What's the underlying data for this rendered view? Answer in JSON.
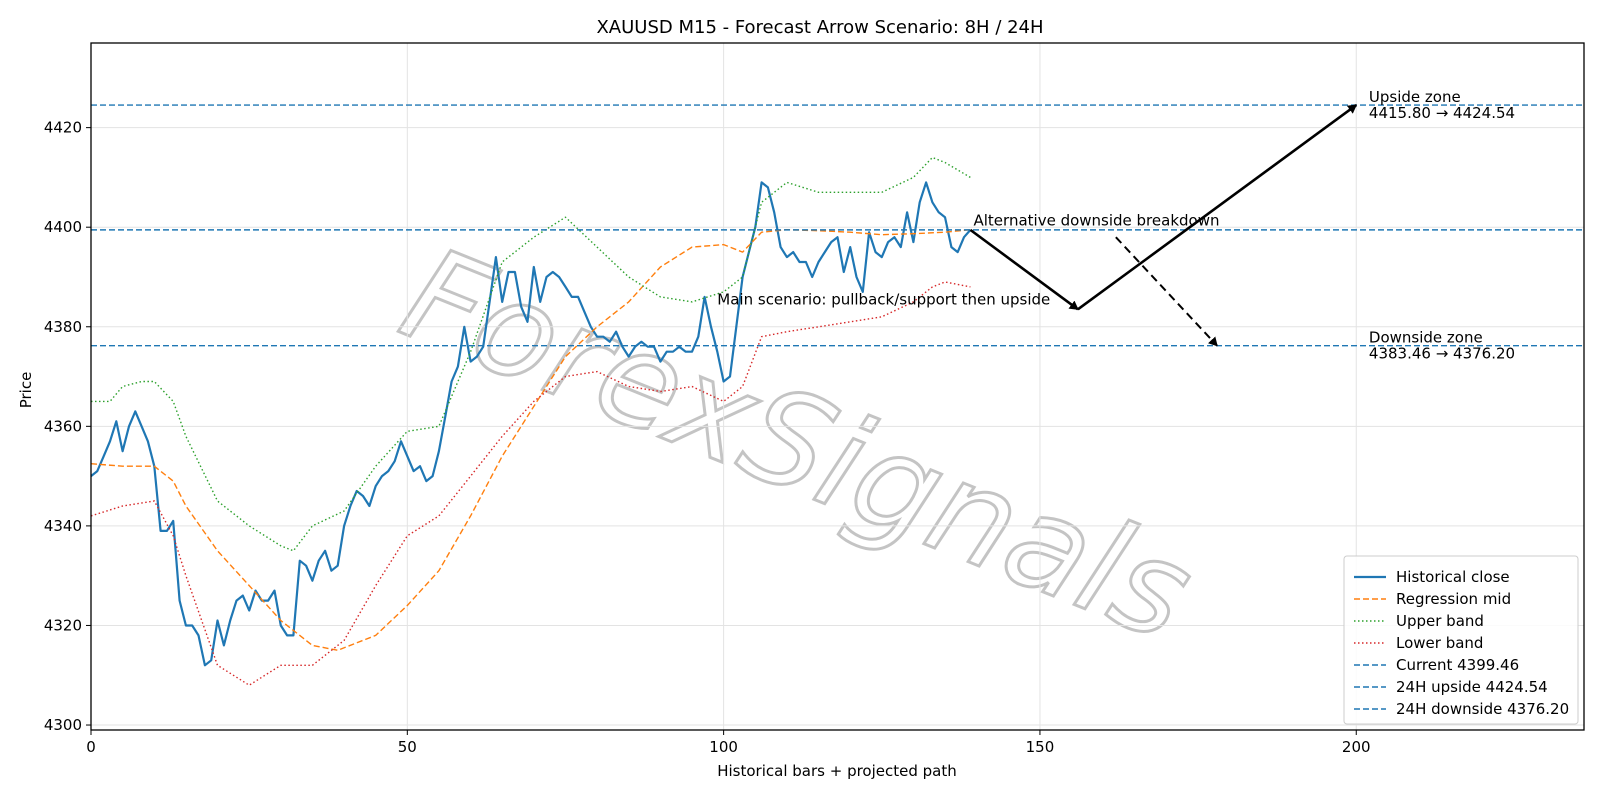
{
  "chart_data": {
    "type": "line",
    "title": "XAUUSD M15 - Forecast Arrow Scenario: 8H / 24H",
    "xlabel": "Historical bars + projected path",
    "ylabel": "Price",
    "xlim": [
      0,
      236
    ],
    "ylim": [
      4299,
      4437
    ],
    "x_ticks": [
      0,
      50,
      100,
      150,
      200
    ],
    "y_ticks": [
      4300,
      4320,
      4340,
      4360,
      4380,
      4400,
      4420
    ],
    "grid": true,
    "legend_position": "lower-right",
    "watermark": "ForexSignals",
    "series": [
      {
        "name": "Historical close",
        "key": "close",
        "color": "#1f77b4",
        "style": "solid",
        "points": [
          [
            0,
            4350
          ],
          [
            1,
            4351
          ],
          [
            2,
            4354
          ],
          [
            3,
            4357
          ],
          [
            4,
            4361
          ],
          [
            5,
            4355
          ],
          [
            6,
            4360
          ],
          [
            7,
            4363
          ],
          [
            8,
            4360
          ],
          [
            9,
            4357
          ],
          [
            10,
            4352
          ],
          [
            11,
            4339
          ],
          [
            12,
            4339
          ],
          [
            13,
            4341
          ],
          [
            14,
            4325
          ],
          [
            15,
            4320
          ],
          [
            16,
            4320
          ],
          [
            17,
            4318
          ],
          [
            18,
            4312
          ],
          [
            19,
            4313
          ],
          [
            20,
            4321
          ],
          [
            21,
            4316
          ],
          [
            22,
            4321
          ],
          [
            23,
            4325
          ],
          [
            24,
            4326
          ],
          [
            25,
            4323
          ],
          [
            26,
            4327
          ],
          [
            27,
            4325
          ],
          [
            28,
            4325
          ],
          [
            29,
            4327
          ],
          [
            30,
            4320
          ],
          [
            31,
            4318
          ],
          [
            32,
            4318
          ],
          [
            33,
            4333
          ],
          [
            34,
            4332
          ],
          [
            35,
            4329
          ],
          [
            36,
            4333
          ],
          [
            37,
            4335
          ],
          [
            38,
            4331
          ],
          [
            39,
            4332
          ],
          [
            40,
            4340
          ],
          [
            41,
            4344
          ],
          [
            42,
            4347
          ],
          [
            43,
            4346
          ],
          [
            44,
            4344
          ],
          [
            45,
            4348
          ],
          [
            46,
            4350
          ],
          [
            47,
            4351
          ],
          [
            48,
            4353
          ],
          [
            49,
            4357
          ],
          [
            50,
            4354
          ],
          [
            51,
            4351
          ],
          [
            52,
            4352
          ],
          [
            53,
            4349
          ],
          [
            54,
            4350
          ],
          [
            55,
            4355
          ],
          [
            56,
            4362
          ],
          [
            57,
            4369
          ],
          [
            58,
            4372
          ],
          [
            59,
            4380
          ],
          [
            60,
            4373
          ],
          [
            61,
            4374
          ],
          [
            62,
            4376
          ],
          [
            63,
            4385
          ],
          [
            64,
            4394
          ],
          [
            65,
            4385
          ],
          [
            66,
            4391
          ],
          [
            67,
            4391
          ],
          [
            68,
            4384
          ],
          [
            69,
            4381
          ],
          [
            70,
            4392
          ],
          [
            71,
            4385
          ],
          [
            72,
            4390
          ],
          [
            73,
            4391
          ],
          [
            74,
            4390
          ],
          [
            75,
            4388
          ],
          [
            76,
            4386
          ],
          [
            77,
            4386
          ],
          [
            78,
            4383
          ],
          [
            79,
            4380
          ],
          [
            80,
            4378
          ],
          [
            81,
            4378
          ],
          [
            82,
            4377
          ],
          [
            83,
            4379
          ],
          [
            84,
            4376
          ],
          [
            85,
            4374
          ],
          [
            86,
            4376
          ],
          [
            87,
            4377
          ],
          [
            88,
            4376
          ],
          [
            89,
            4376
          ],
          [
            90,
            4373
          ],
          [
            91,
            4375
          ],
          [
            92,
            4375
          ],
          [
            93,
            4376
          ],
          [
            94,
            4375
          ],
          [
            95,
            4375
          ],
          [
            96,
            4378
          ],
          [
            97,
            4386
          ],
          [
            98,
            4380
          ],
          [
            99,
            4375
          ],
          [
            100,
            4369
          ],
          [
            101,
            4370
          ],
          [
            102,
            4380
          ],
          [
            103,
            4390
          ],
          [
            104,
            4395
          ],
          [
            105,
            4400
          ],
          [
            106,
            4409
          ],
          [
            107,
            4408
          ],
          [
            108,
            4403
          ],
          [
            109,
            4396
          ],
          [
            110,
            4394
          ],
          [
            111,
            4395
          ],
          [
            112,
            4393
          ],
          [
            113,
            4393
          ],
          [
            114,
            4390
          ],
          [
            115,
            4393
          ],
          [
            116,
            4395
          ],
          [
            117,
            4397
          ],
          [
            118,
            4398
          ],
          [
            119,
            4391
          ],
          [
            120,
            4396
          ],
          [
            121,
            4390
          ],
          [
            122,
            4387
          ],
          [
            123,
            4399
          ],
          [
            124,
            4395
          ],
          [
            125,
            4394
          ],
          [
            126,
            4397
          ],
          [
            127,
            4398
          ],
          [
            128,
            4396
          ],
          [
            129,
            4403
          ],
          [
            130,
            4397
          ],
          [
            131,
            4405
          ],
          [
            132,
            4409
          ],
          [
            133,
            4405
          ],
          [
            134,
            4403
          ],
          [
            135,
            4402
          ],
          [
            136,
            4396
          ],
          [
            137,
            4395
          ],
          [
            138,
            4398
          ],
          [
            139,
            4399.46
          ]
        ]
      },
      {
        "name": "Regression mid",
        "key": "mid",
        "color": "#ff7f0e",
        "style": "dashed",
        "points": [
          [
            0,
            4352.5
          ],
          [
            5,
            4352
          ],
          [
            10,
            4352
          ],
          [
            13,
            4349
          ],
          [
            15,
            4344
          ],
          [
            20,
            4335
          ],
          [
            25,
            4328
          ],
          [
            30,
            4321
          ],
          [
            35,
            4316
          ],
          [
            39,
            4315
          ],
          [
            45,
            4318
          ],
          [
            50,
            4324
          ],
          [
            55,
            4331
          ],
          [
            60,
            4342
          ],
          [
            65,
            4354
          ],
          [
            70,
            4364
          ],
          [
            75,
            4374
          ],
          [
            80,
            4380
          ],
          [
            85,
            4385
          ],
          [
            90,
            4392
          ],
          [
            95,
            4396
          ],
          [
            100,
            4396.5
          ],
          [
            103,
            4395
          ],
          [
            106,
            4399
          ],
          [
            110,
            4399.5
          ],
          [
            115,
            4399.3
          ],
          [
            120,
            4399
          ],
          [
            125,
            4398.5
          ],
          [
            130,
            4398.7
          ],
          [
            135,
            4399
          ],
          [
            139,
            4399.5
          ]
        ]
      },
      {
        "name": "Upper band",
        "key": "upper",
        "color": "#2ca02c",
        "style": "dotted",
        "points": [
          [
            0,
            4365
          ],
          [
            3,
            4365
          ],
          [
            5,
            4368
          ],
          [
            8,
            4369
          ],
          [
            10,
            4369
          ],
          [
            13,
            4365
          ],
          [
            15,
            4358
          ],
          [
            20,
            4345
          ],
          [
            25,
            4340
          ],
          [
            30,
            4336
          ],
          [
            32,
            4335
          ],
          [
            35,
            4340
          ],
          [
            40,
            4343
          ],
          [
            45,
            4352
          ],
          [
            50,
            4359
          ],
          [
            55,
            4360
          ],
          [
            60,
            4375
          ],
          [
            65,
            4393
          ],
          [
            70,
            4398
          ],
          [
            75,
            4402
          ],
          [
            80,
            4396
          ],
          [
            85,
            4390
          ],
          [
            90,
            4386
          ],
          [
            95,
            4385
          ],
          [
            100,
            4387
          ],
          [
            103,
            4390
          ],
          [
            106,
            4405
          ],
          [
            110,
            4409
          ],
          [
            115,
            4407
          ],
          [
            120,
            4407
          ],
          [
            125,
            4407
          ],
          [
            130,
            4410
          ],
          [
            133,
            4414
          ],
          [
            135,
            4413
          ],
          [
            139,
            4410
          ]
        ]
      },
      {
        "name": "Lower band",
        "key": "lower",
        "color": "#d62728",
        "style": "dotted",
        "points": [
          [
            0,
            4342
          ],
          [
            5,
            4344
          ],
          [
            10,
            4345
          ],
          [
            13,
            4338
          ],
          [
            15,
            4330
          ],
          [
            20,
            4312
          ],
          [
            25,
            4308
          ],
          [
            30,
            4312
          ],
          [
            35,
            4312
          ],
          [
            40,
            4317
          ],
          [
            45,
            4328
          ],
          [
            50,
            4338
          ],
          [
            55,
            4342
          ],
          [
            60,
            4350
          ],
          [
            65,
            4358
          ],
          [
            70,
            4365
          ],
          [
            75,
            4370
          ],
          [
            80,
            4371
          ],
          [
            85,
            4368
          ],
          [
            90,
            4367
          ],
          [
            95,
            4368
          ],
          [
            100,
            4365
          ],
          [
            103,
            4368
          ],
          [
            106,
            4378
          ],
          [
            110,
            4379
          ],
          [
            115,
            4380
          ],
          [
            120,
            4381
          ],
          [
            125,
            4382
          ],
          [
            130,
            4385
          ],
          [
            133,
            4388
          ],
          [
            135,
            4389
          ],
          [
            139,
            4388
          ]
        ]
      },
      {
        "name": "Current 4399.46",
        "key": "current",
        "color": "#1f77b4",
        "style": "dashed-h",
        "y": 4399.46
      },
      {
        "name": "24H upside 4424.54",
        "key": "upside",
        "color": "#1f77b4",
        "style": "dashed-h",
        "y": 4424.54
      },
      {
        "name": "24H downside 4376.20",
        "key": "downside",
        "color": "#1f77b4",
        "style": "dashed-h",
        "y": 4376.2
      }
    ],
    "arrows": [
      {
        "key": "main-down",
        "from": [
          139,
          4399.46
        ],
        "to": [
          156,
          4383.5
        ],
        "style": "solid"
      },
      {
        "key": "main-up",
        "from": [
          156,
          4383.5
        ],
        "to": [
          200,
          4424.54
        ],
        "style": "solid"
      },
      {
        "key": "alt-down",
        "from": [
          162,
          4398
        ],
        "to": [
          178,
          4376.2
        ],
        "style": "dashed"
      }
    ],
    "annotations": [
      {
        "key": "upside-zone",
        "lines": [
          "Upside zone",
          "4415.80 → 4424.54"
        ],
        "x": 202,
        "y": 4424.54
      },
      {
        "key": "alt-scenario",
        "lines": [
          "Alternative downside breakdown"
        ],
        "x": 139.5,
        "y": 4400.3
      },
      {
        "key": "main-scenario",
        "lines": [
          "Main scenario: pullback/support then upside"
        ],
        "x": 99,
        "y": 4384.5
      },
      {
        "key": "downside-zone",
        "lines": [
          "Downside zone",
          "4383.46 → 4376.20"
        ],
        "x": 202,
        "y": 4376.2
      }
    ]
  }
}
